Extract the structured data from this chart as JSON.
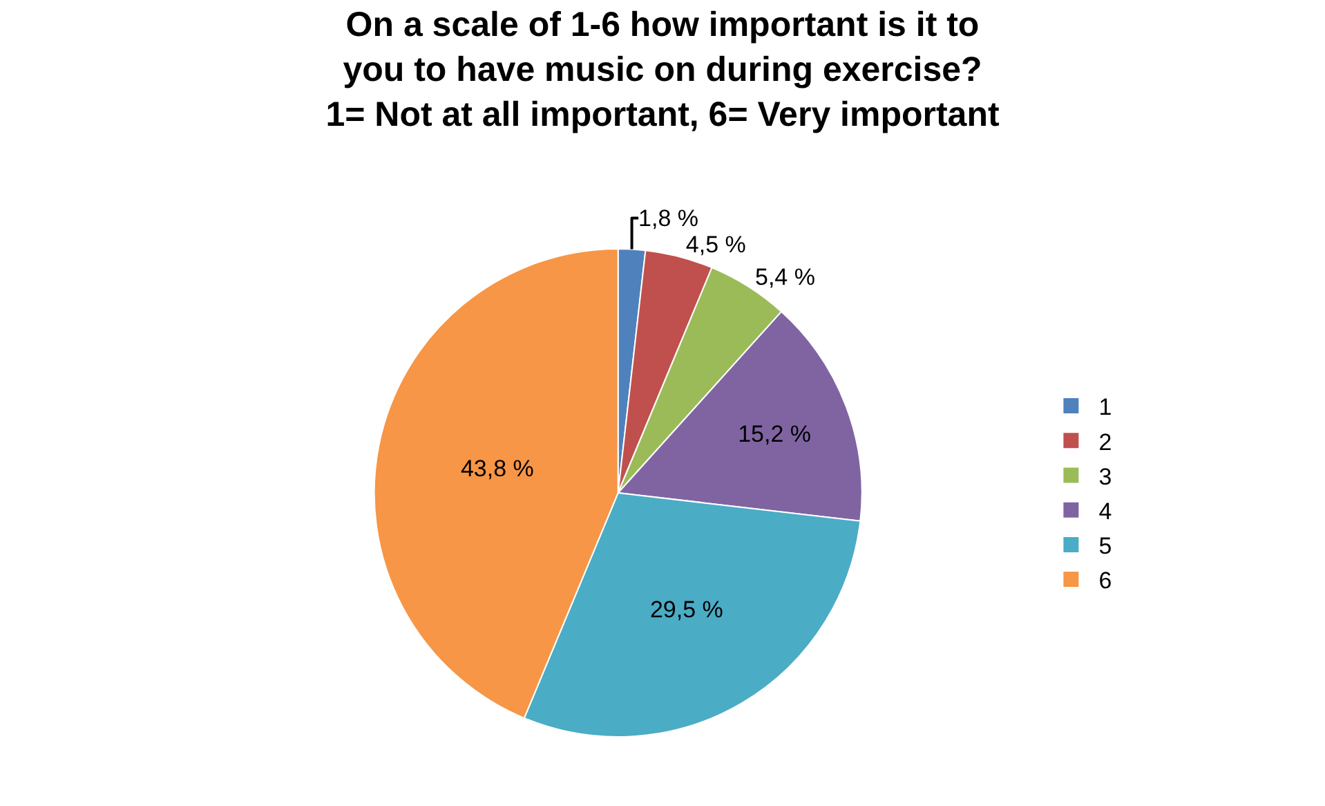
{
  "chart_data": {
    "type": "pie",
    "title": "On a scale of 1-6 how important is it to\nyou to have music on during exercise?\n1= Not at all important, 6= Very important",
    "categories": [
      "1",
      "2",
      "3",
      "4",
      "5",
      "6"
    ],
    "values": [
      1.8,
      4.5,
      5.4,
      15.2,
      29.5,
      43.8
    ],
    "value_labels": [
      "1,8 %",
      "4,5 %",
      "5,4 %",
      "15,2 %",
      "29,5 %",
      "43,8 %"
    ],
    "colors": [
      "#4f81bd",
      "#c0504d",
      "#9bbb59",
      "#8064a2",
      "#4bacc6",
      "#f79646"
    ],
    "legend": "right"
  }
}
